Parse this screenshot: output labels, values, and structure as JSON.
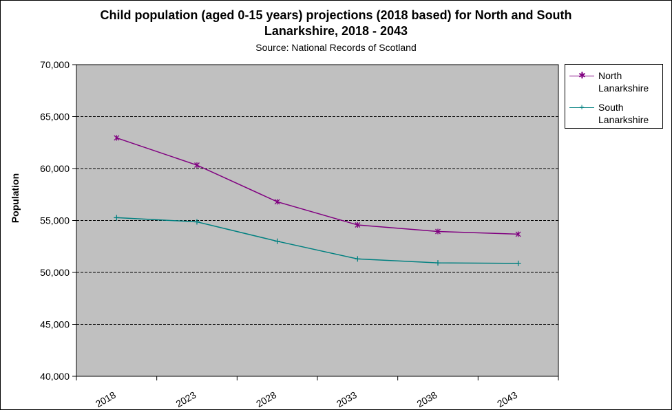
{
  "chart_data": {
    "type": "line",
    "title_line1": "Child population (aged 0-15 years) projections (2018 based) for North and South",
    "title_line2": "Lanarkshire, 2018 - 2043",
    "subtitle": "Source: National Records of Scotland",
    "xlabel": "",
    "ylabel": "Population",
    "categories": [
      "2018",
      "2023",
      "2028",
      "2033",
      "2038",
      "2043"
    ],
    "ylim": [
      40000,
      70000
    ],
    "yticks": [
      40000,
      45000,
      50000,
      55000,
      60000,
      65000,
      70000
    ],
    "ytick_labels": [
      "40,000",
      "45,000",
      "50,000",
      "55,000",
      "60,000",
      "65,000",
      "70,000"
    ],
    "series": [
      {
        "name": "North Lanarkshire",
        "name_line1": "North",
        "name_line2": "Lanarkshire",
        "color": "#800080",
        "marker": "star",
        "values": [
          62950,
          60330,
          56800,
          54570,
          53940,
          53680
        ]
      },
      {
        "name": "South Lanarkshire",
        "name_line1": "South",
        "name_line2": "Lanarkshire",
        "color": "#008080",
        "marker": "plus",
        "values": [
          55270,
          54870,
          53000,
          51300,
          50920,
          50870
        ]
      }
    ],
    "legend_position": "top-right",
    "plot_background": "#c0c0c0",
    "grid": true
  }
}
